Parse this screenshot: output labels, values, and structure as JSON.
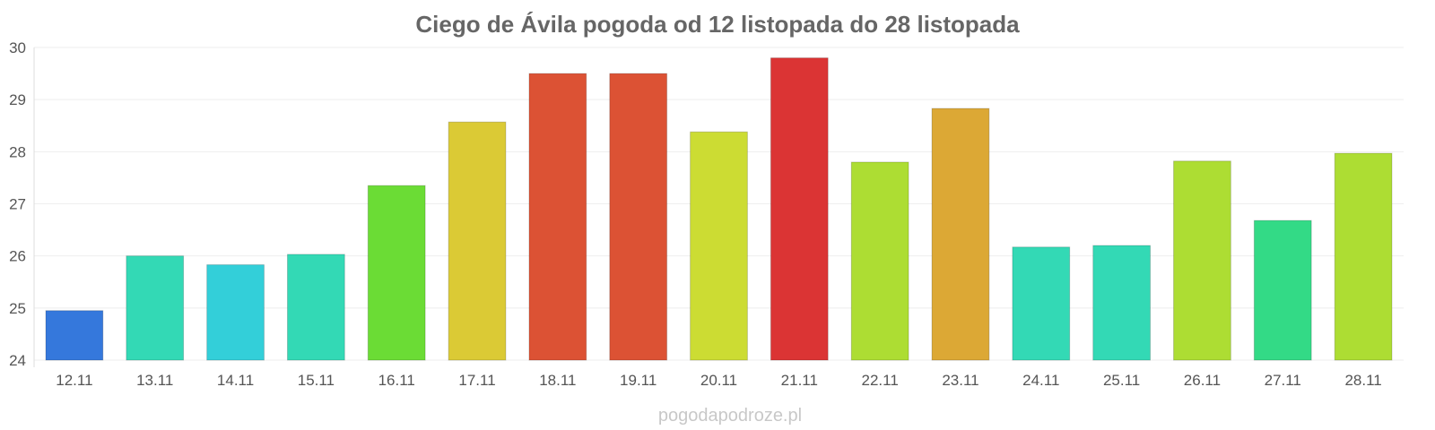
{
  "chart_data": {
    "type": "bar",
    "title": "Ciego de Ávila pogoda od 12 listopada do 28 listopada",
    "categories": [
      "12.11",
      "13.11",
      "14.11",
      "15.11",
      "16.11",
      "17.11",
      "18.11",
      "19.11",
      "20.11",
      "21.11",
      "22.11",
      "23.11",
      "24.11",
      "25.11",
      "26.11",
      "27.11",
      "28.11"
    ],
    "values": [
      24.95,
      26.0,
      25.83,
      26.03,
      27.35,
      28.57,
      29.5,
      29.5,
      28.38,
      29.8,
      27.8,
      28.83,
      26.17,
      26.2,
      27.82,
      26.68,
      27.97
    ],
    "colors": [
      "#3578dc",
      "#33d9b5",
      "#33cfd9",
      "#33d9b5",
      "#6bdc35",
      "#dbca35",
      "#dc5234",
      "#dc5234",
      "#ccdc33",
      "#db3434",
      "#addd33",
      "#dca835",
      "#33d9b5",
      "#33d9b5",
      "#addd33",
      "#33da86",
      "#addd33"
    ],
    "ylim": [
      24,
      30
    ],
    "yticks": [
      "24",
      "25",
      "26",
      "27",
      "28",
      "29",
      "30"
    ],
    "xlabel": "",
    "ylabel": "",
    "grid": true,
    "legend": "none"
  },
  "footer": {
    "source": "pogodapodroze.pl"
  }
}
